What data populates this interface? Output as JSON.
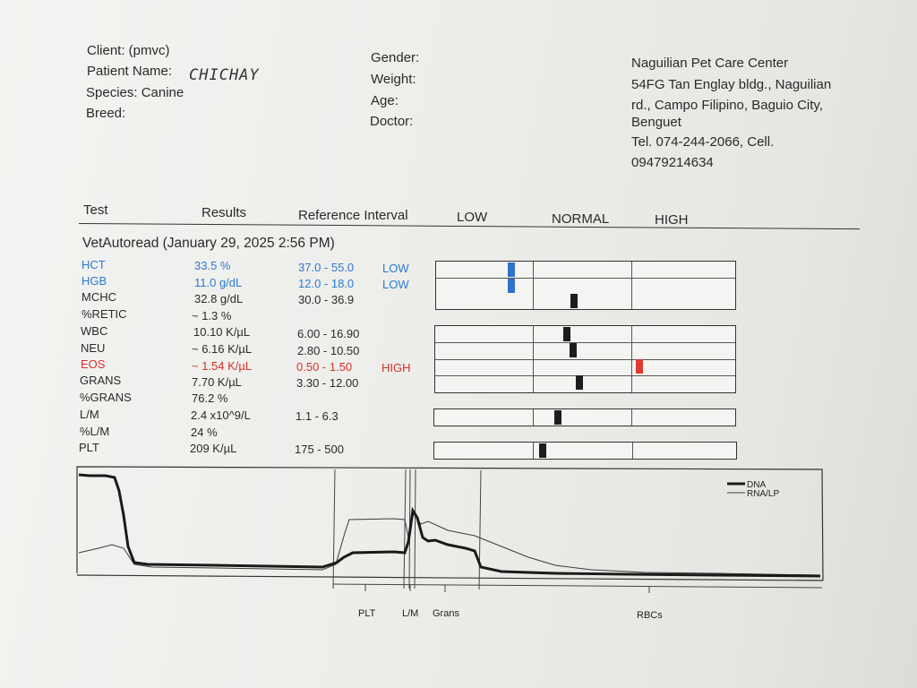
{
  "header": {
    "client": "Client:  (pmvc)",
    "patient_label": "Patient Name:",
    "patient_name": "CHICHAY",
    "species": "Species: Canine",
    "breed": "Breed:",
    "gender": "Gender:",
    "weight": "Weight:",
    "age": "Age:",
    "doctor": "Doctor:",
    "clinic_lines": [
      "Naguilian Pet Care Center",
      "54FG Tan Englay bldg., Naguilian",
      "rd., Campo Filipino, Baguio City,",
      "Benguet",
      "Tel. 074-244-2066,        Cell.",
      "09479214634"
    ]
  },
  "columns": {
    "test": "Test",
    "results": "Results",
    "ref": "Reference Interval",
    "low": "LOW",
    "normal": "NORMAL",
    "high": "HIGH"
  },
  "run_title": "VetAutoread (January 29, 2025 2:56 PM)",
  "tests": [
    {
      "name": "HCT",
      "result": "33.5 %",
      "ref": "37.0 - 55.0",
      "flag": "LOW",
      "status": "low"
    },
    {
      "name": "HGB",
      "result": "11.0 g/dL",
      "ref": "12.0 - 18.0",
      "flag": "LOW",
      "status": "low"
    },
    {
      "name": "MCHC",
      "result": "32.8 g/dL",
      "ref": "30.0 - 36.9",
      "flag": "",
      "status": "normal"
    },
    {
      "name": "%RETIC",
      "result": "~ 1.3 %",
      "ref": "",
      "flag": "",
      "status": "normal"
    },
    {
      "name": "WBC",
      "result": "10.10 K/µL",
      "ref": "6.00 - 16.90",
      "flag": "",
      "status": "normal"
    },
    {
      "name": "NEU",
      "result": "~ 6.16 K/µL",
      "ref": "2.80 - 10.50",
      "flag": "",
      "status": "normal"
    },
    {
      "name": "EOS",
      "result": "~ 1.54 K/µL",
      "ref": "0.50 - 1.50",
      "flag": "HIGH",
      "status": "high"
    },
    {
      "name": "GRANS",
      "result": "7.70 K/µL",
      "ref": "3.30 - 12.00",
      "flag": "",
      "status": "normal"
    },
    {
      "name": "%GRANS",
      "result": "76.2 %",
      "ref": "",
      "flag": "",
      "status": "normal"
    },
    {
      "name": "L/M",
      "result": "2.4 x10^9/L",
      "ref": "1.1 - 6.3",
      "flag": "",
      "status": "normal"
    },
    {
      "name": "%L/M",
      "result": "24 %",
      "ref": "",
      "flag": "",
      "status": "normal"
    },
    {
      "name": "PLT",
      "result": "209 K/µL",
      "ref": "175 - 500",
      "flag": "",
      "status": "normal"
    }
  ],
  "indicator_levels": {
    "HCT": 0.25,
    "HGB": 0.25,
    "MCHC": 0.46,
    "WBC": 0.44,
    "NEU": 0.46,
    "EOS": 0.68,
    "GRANS": 0.48,
    "L/M": 0.41,
    "PLT": 0.36
  },
  "colors": {
    "low": "#2f72c9",
    "high": "#e0392f",
    "normal": "#1d1d1d"
  },
  "histogram": {
    "legend": [
      "DNA",
      "RNA/LP"
    ],
    "regions": [
      "PLT",
      "L/M",
      "Grans",
      "RBCs"
    ]
  }
}
